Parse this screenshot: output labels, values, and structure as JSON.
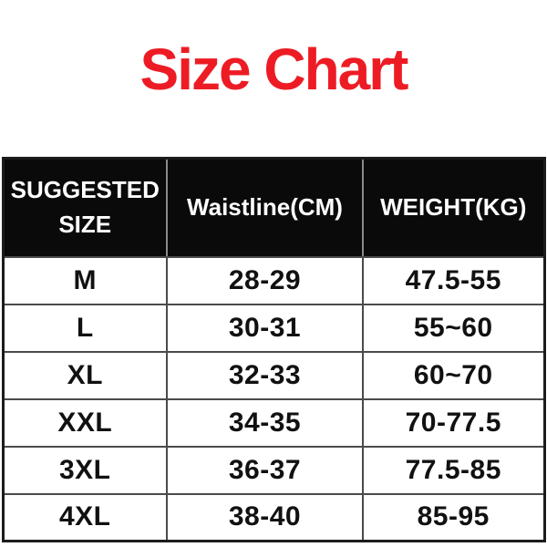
{
  "page_title": "Size Chart",
  "colors": {
    "title_red": "#ED1C24",
    "header_bg": "#0A0A0A",
    "header_text": "#FFFFFF",
    "body_text": "#111111",
    "grid_line": "#4A4A4A",
    "header_divider": "#8A8A8A",
    "outer_border": "#1C1C1C"
  },
  "chart_data": {
    "type": "table",
    "title": "Size Chart",
    "columns": [
      "SUGGESTED SIZE",
      "Waistline(CM)",
      "WEIGHT(KG)"
    ],
    "rows": [
      [
        "M",
        "28-29",
        "47.5-55"
      ],
      [
        "L",
        "30-31",
        "55~60"
      ],
      [
        "XL",
        "32-33",
        "60~70"
      ],
      [
        "XXL",
        "34-35",
        "70-77.5"
      ],
      [
        "3XL",
        "36-37",
        "77.5-85"
      ],
      [
        "4XL",
        "38-40",
        "85-95"
      ]
    ]
  }
}
